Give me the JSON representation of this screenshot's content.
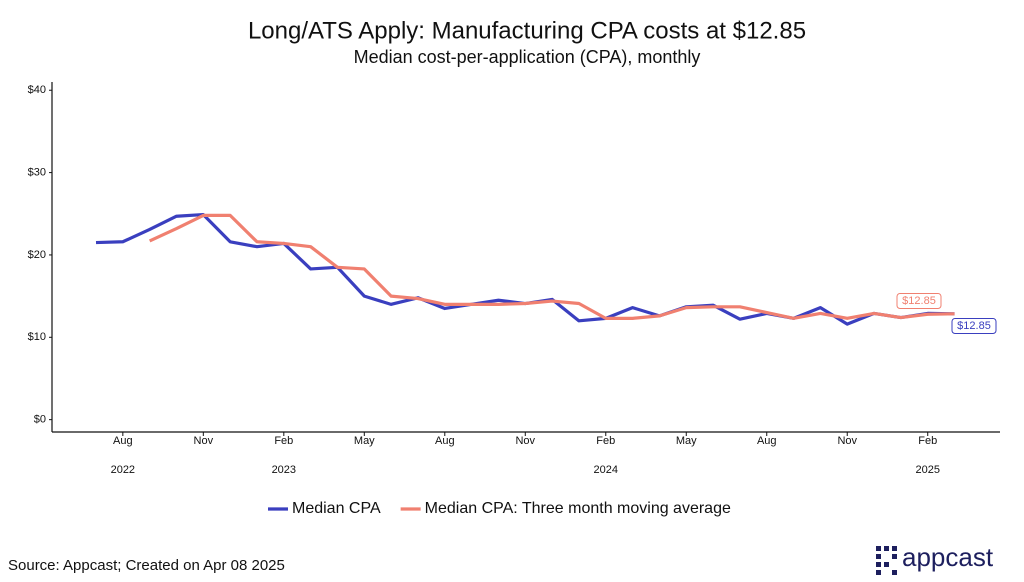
{
  "chart_data": {
    "type": "line",
    "title": "Long/ATS Apply: Manufacturing CPA costs at $12.85",
    "subtitle": "Median cost-per-application (CPA), monthly",
    "x": [
      "2022-07",
      "2022-08",
      "2022-09",
      "2022-10",
      "2022-11",
      "2022-12",
      "2023-01",
      "2023-02",
      "2023-03",
      "2023-04",
      "2023-05",
      "2023-06",
      "2023-07",
      "2023-08",
      "2023-09",
      "2023-10",
      "2023-11",
      "2023-12",
      "2024-01",
      "2024-02",
      "2024-03",
      "2024-04",
      "2024-05",
      "2024-06",
      "2024-07",
      "2024-08",
      "2024-09",
      "2024-10",
      "2024-11",
      "2024-12",
      "2025-01",
      "2025-02",
      "2025-03"
    ],
    "series": [
      {
        "name": "Median CPA",
        "color": "#3a3fbf",
        "values": [
          21.5,
          21.6,
          23.1,
          24.7,
          24.9,
          21.6,
          21.0,
          21.4,
          18.3,
          18.5,
          15.0,
          14.0,
          14.8,
          13.5,
          14.0,
          14.5,
          14.1,
          14.6,
          12.0,
          12.3,
          13.6,
          12.6,
          13.7,
          13.9,
          12.2,
          12.9,
          12.3,
          13.6,
          11.6,
          12.9,
          12.4,
          12.9,
          12.85
        ],
        "value_labels": [
          null,
          null,
          null,
          null,
          null,
          null,
          null,
          null,
          null,
          null,
          null,
          null,
          null,
          null,
          null,
          null,
          null,
          null,
          null,
          null,
          null,
          null,
          null,
          null,
          null,
          null,
          null,
          null,
          null,
          null,
          null,
          null,
          "$12.85"
        ]
      },
      {
        "name": "Median CPA: Three month moving average",
        "color": "#f08070",
        "values": [
          null,
          null,
          21.7,
          23.2,
          24.8,
          24.8,
          21.6,
          21.4,
          21.0,
          18.5,
          18.3,
          15.0,
          14.7,
          14.0,
          14.0,
          14.0,
          14.1,
          14.4,
          14.1,
          12.3,
          12.3,
          12.6,
          13.6,
          13.7,
          13.7,
          13.0,
          12.3,
          12.9,
          12.3,
          12.9,
          12.4,
          12.8,
          12.85
        ],
        "value_labels": [
          null,
          null,
          null,
          null,
          null,
          null,
          null,
          null,
          null,
          null,
          null,
          null,
          null,
          null,
          null,
          null,
          null,
          null,
          null,
          null,
          null,
          null,
          null,
          null,
          null,
          null,
          null,
          null,
          null,
          null,
          null,
          null,
          "$12.85"
        ]
      }
    ],
    "ylim": [
      -1.5,
      41
    ],
    "yticks": [
      {
        "value": 0,
        "label": "$0"
      },
      {
        "value": 10,
        "label": "$10"
      },
      {
        "value": 20,
        "label": "$20"
      },
      {
        "value": 30,
        "label": "$30"
      },
      {
        "value": 40,
        "label": "$40"
      }
    ],
    "xticks": [
      {
        "value": "2022-08",
        "label": "Aug"
      },
      {
        "value": "2022-11",
        "label": "Nov"
      },
      {
        "value": "2023-02",
        "label": "Feb"
      },
      {
        "value": "2023-05",
        "label": "May"
      },
      {
        "value": "2023-08",
        "label": "Aug"
      },
      {
        "value": "2023-11",
        "label": "Nov"
      },
      {
        "value": "2024-02",
        "label": "Feb"
      },
      {
        "value": "2024-05",
        "label": "May"
      },
      {
        "value": "2024-08",
        "label": "Aug"
      },
      {
        "value": "2024-11",
        "label": "Nov"
      },
      {
        "value": "2025-02",
        "label": "Feb"
      }
    ],
    "year_ticks": [
      {
        "value": "2022-08",
        "label": "2022"
      },
      {
        "value": "2023-02",
        "label": "2023"
      },
      {
        "value": "2024-02",
        "label": "2024"
      },
      {
        "value": "2025-02",
        "label": "2025"
      }
    ],
    "legend": "bottom"
  },
  "footer": {
    "source": "Source: Appcast; Created on Apr 08 2025",
    "logo": "appcast"
  }
}
